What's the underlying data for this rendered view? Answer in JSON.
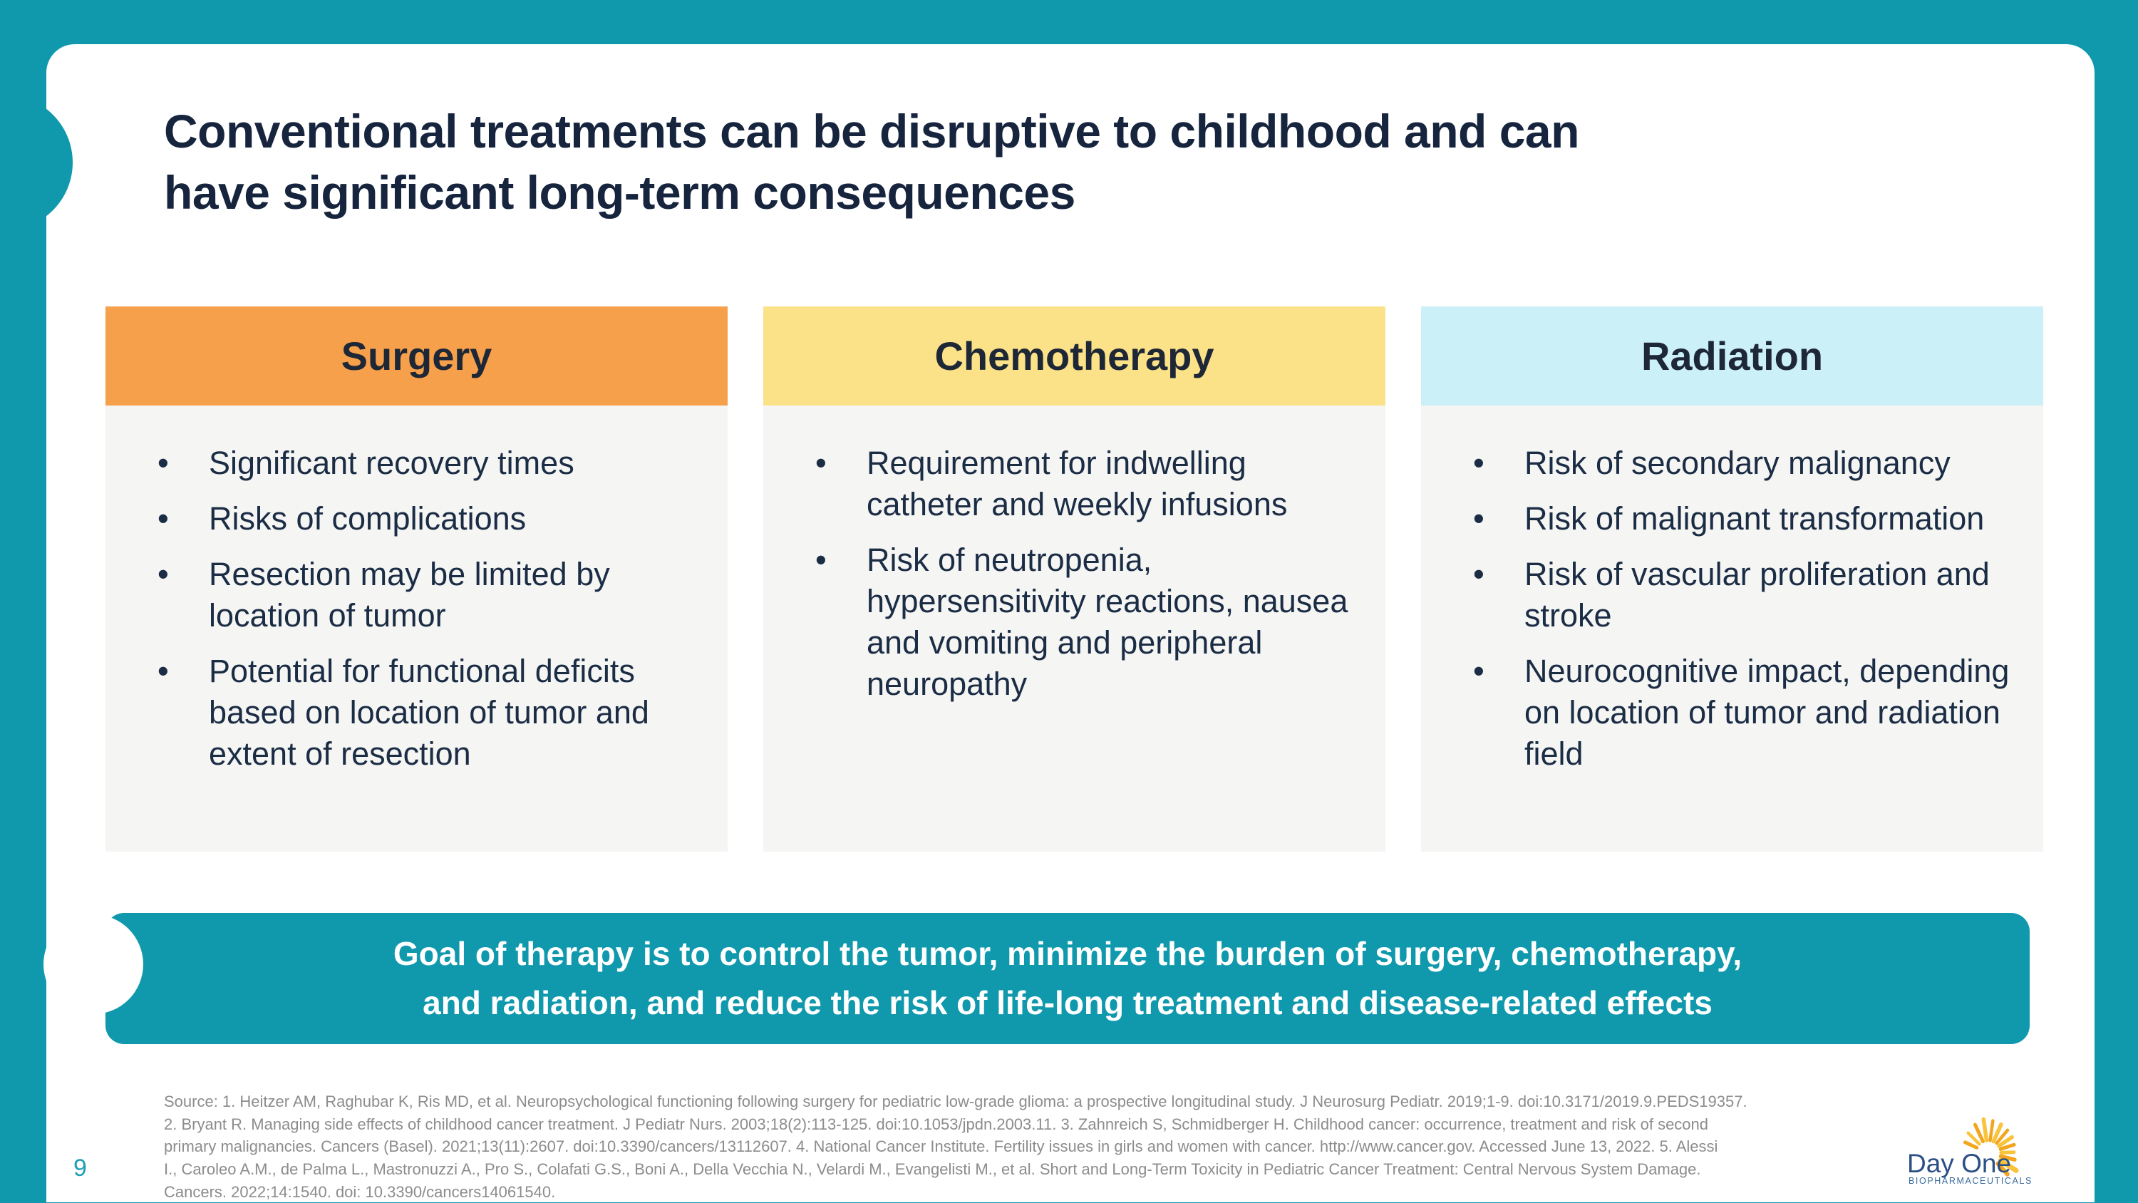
{
  "page": {
    "page_number": "9",
    "title_lines": [
      "Conventional treatments can be disruptive to childhood and can",
      "have significant long-term consequences"
    ],
    "columns": [
      {
        "header": "Surgery",
        "header_color": "#F6A04C",
        "bullets": [
          "Significant recovery times",
          "Risks of complications",
          "Resection may be limited by location of tumor",
          "Potential for functional deficits based on location of tumor and extent of resection"
        ]
      },
      {
        "header": "Chemotherapy",
        "header_color": "#FBE289",
        "bullets": [
          "Requirement for indwelling catheter and weekly infusions",
          "Risk of neutropenia, hypersensitivity reactions, nausea and vomiting and peripheral neuropathy"
        ]
      },
      {
        "header": "Radiation",
        "header_color": "#CBF0F7",
        "bullets": [
          "Risk of secondary malignancy",
          "Risk of malignant transformation",
          "Risk of vascular proliferation and stroke",
          "Neurocognitive impact, depending on location of tumor and radiation field"
        ]
      }
    ],
    "banner_lines": [
      "Goal of therapy is to control the tumor, minimize the burden of surgery, chemotherapy,",
      "and radiation, and reduce the risk of life-long treatment and disease-related effects"
    ],
    "source_lines": [
      "Source: 1. Heitzer AM, Raghubar K, Ris MD, et al. Neuropsychological functioning following surgery for pediatric low-grade glioma: a prospective longitudinal study. J Neurosurg Pediatr. 2019;1-9. doi:10.3171/2019.9.PEDS19357.",
      "2. Bryant R. Managing side effects of childhood cancer treatment. J Pediatr Nurs. 2003;18(2):113-125. doi:10.1053/jpdn.2003.11. 3. Zahnreich S, Schmidberger H. Childhood cancer: occurrence, treatment and risk of second",
      "primary malignancies. Cancers (Basel). 2021;13(11):2607. doi:10.3390/cancers/13112607. 4. National Cancer Institute. Fertility issues in girls and women with cancer. http://www.cancer.gov. Accessed June 13, 2022. 5. Alessi",
      "I., Caroleo A.M., de Palma L., Mastronuzzi A., Pro S., Colafati G.S., Boni A., Della Vecchia N., Velardi M., Evangelisti M., et al. Short and Long-Term Toxicity in Pediatric Cancer Treatment: Central Nervous System Damage.",
      "Cancers. 2022;14:1540. doi: 10.3390/cancers14061540."
    ],
    "logo": {
      "brand": "Day One",
      "tagline": "BIOPHARMACEUTICALS"
    },
    "colors": {
      "teal": "#1099AC",
      "surgery_header": "#F6A04C",
      "chemotherapy_header": "#FBE289",
      "radiation_header": "#CBF0F7",
      "column_body": "#F5F5F3",
      "title_text": "#16243D",
      "body_text": "#1B2C45",
      "banner_text": "#FFFFFF",
      "source_text": "#8C8C8C",
      "page_number_text": "#1E9FB4",
      "logo_blue": "#2C4F85",
      "sun_yellow": "#F9C33C",
      "sun_orange": "#F3A51D"
    }
  }
}
